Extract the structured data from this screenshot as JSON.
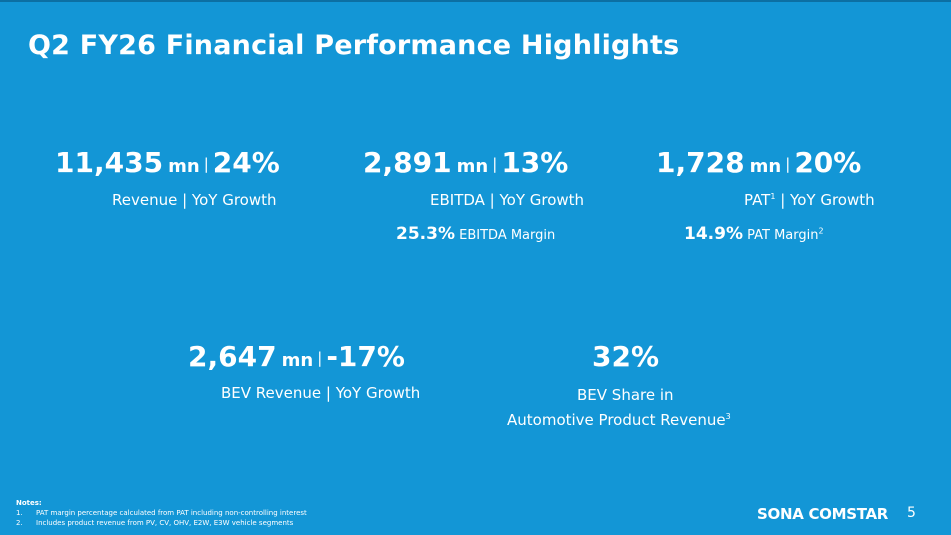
{
  "slide": {
    "title": "Q2 FY26 Financial Performance Highlights",
    "page_number": "5",
    "brand": "SONA COMSTAR"
  },
  "metrics": {
    "revenue": {
      "value": "11,435",
      "unit": "mn",
      "growth": "24%",
      "label": "Revenue | YoY Growth"
    },
    "ebitda": {
      "value": "2,891",
      "unit": "mn",
      "growth": "13%",
      "label": "EBITDA | YoY Growth",
      "margin_value": "25.3%",
      "margin_label": "EBITDA Margin"
    },
    "pat": {
      "value": "1,728",
      "unit": "mn",
      "growth": "20%",
      "label_prefix": "PAT",
      "label_sup": "1",
      "label_suffix": " | YoY Growth",
      "margin_value": "14.9%",
      "margin_label": "PAT Margin",
      "margin_sup": "2"
    },
    "bev_revenue": {
      "value": "2,647",
      "unit": "mn",
      "growth": "-17%",
      "label": "BEV Revenue | YoY Growth"
    },
    "bev_share": {
      "value": "32%",
      "label_line1": "BEV Share in",
      "label_line2": "Automotive Product Revenue",
      "label_sup": "3"
    }
  },
  "notes": {
    "heading": "Notes:",
    "items": [
      {
        "num": "1.",
        "text": "PAT margin percentage calculated from PAT including non-controlling interest"
      },
      {
        "num": "2.",
        "text": "Includes product revenue from PV, CV, OHV, E2W, E3W vehicle segments"
      }
    ]
  },
  "colors": {
    "background": "#1396d6",
    "text": "#ffffff"
  }
}
